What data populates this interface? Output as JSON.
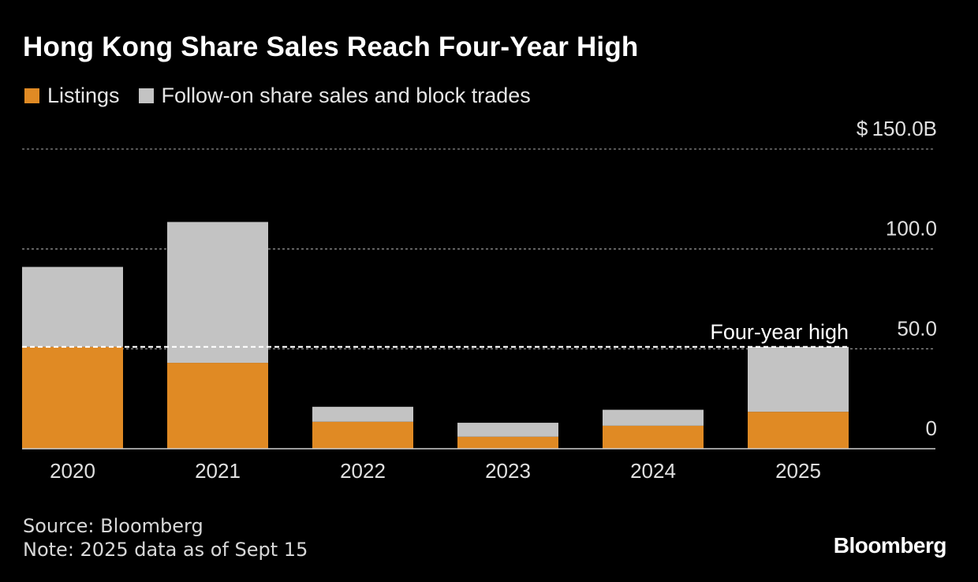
{
  "chart_data": {
    "type": "bar",
    "stacked": true,
    "title": "Hong Kong Share Sales Reach Four-Year High",
    "categories": [
      "2020",
      "2021",
      "2022",
      "2023",
      "2024",
      "2025"
    ],
    "series": [
      {
        "name": "Listings",
        "color": "#e08a24",
        "values": [
          51.0,
          43.0,
          13.5,
          6.0,
          11.5,
          18.5
        ]
      },
      {
        "name": "Follow-on share sales and block trades",
        "color": "#c3c3c3",
        "values": [
          40.0,
          70.5,
          7.5,
          7.0,
          8.0,
          32.5
        ]
      }
    ],
    "ylim": [
      0,
      150
    ],
    "yticks": [
      {
        "value": 0,
        "label": "0"
      },
      {
        "value": 50,
        "label": "50.0"
      },
      {
        "value": 100,
        "label": "100.0"
      },
      {
        "value": 150,
        "label": "150.0B"
      }
    ],
    "y_currency_prefix": "$",
    "annotation": {
      "label": "Four-year high",
      "value": 51.0
    },
    "xlabel": "",
    "ylabel": ""
  },
  "footer": {
    "source": "Source: Bloomberg",
    "note": "Note: 2025 data as of Sept 15"
  },
  "brand": "Bloomberg"
}
